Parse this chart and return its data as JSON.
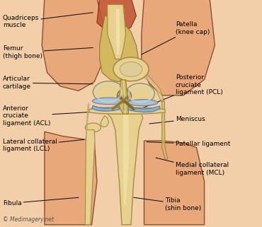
{
  "figsize": [
    3.7,
    3.21
  ],
  "dpi": 100,
  "bg_color": "#f2cfa8",
  "watermark": "© Medimagery.net",
  "skin_color": "#e8a87a",
  "skin_edge": "#8b5030",
  "bone_color": "#e8d090",
  "bone_light": "#f5e8b0",
  "bone_edge": "#a09040",
  "cart_color": "#a8c0d8",
  "cart_edge": "#5878a0",
  "musc_color": "#c05030",
  "tendon_color": "#d4b860",
  "tendon_edge": "#907830",
  "label_fontsize": 6.5,
  "arrow_color": "#222222",
  "left_labels": [
    {
      "text": "Quadriceps\nmuscle",
      "xt": 0.01,
      "yt": 0.905,
      "xa": 0.355,
      "ya": 0.945
    },
    {
      "text": "Femur\n(thigh bone)",
      "xt": 0.01,
      "yt": 0.77,
      "xa": 0.355,
      "ya": 0.79
    },
    {
      "text": "Articular\ncartilage",
      "xt": 0.01,
      "yt": 0.635,
      "xa": 0.355,
      "ya": 0.63
    },
    {
      "text": "Anterior\ncruciate\nligament (ACL)",
      "xt": 0.01,
      "yt": 0.49,
      "xa": 0.4,
      "ya": 0.51
    },
    {
      "text": "Lateral collateral\nligament (LCL)",
      "xt": 0.01,
      "yt": 0.36,
      "xa": 0.32,
      "ya": 0.385
    },
    {
      "text": "Fibula",
      "xt": 0.01,
      "yt": 0.105,
      "xa": 0.3,
      "ya": 0.13
    }
  ],
  "right_labels": [
    {
      "text": "Patella\n(knee cap)",
      "xt": 0.67,
      "yt": 0.875,
      "xa": 0.54,
      "ya": 0.76
    },
    {
      "text": "Posterior\ncruciate\nligament (PCL)",
      "xt": 0.67,
      "yt": 0.625,
      "xa": 0.535,
      "ya": 0.52
    },
    {
      "text": "Meniscus",
      "xt": 0.67,
      "yt": 0.475,
      "xa": 0.57,
      "ya": 0.455
    },
    {
      "text": "Patellar ligament",
      "xt": 0.67,
      "yt": 0.365,
      "xa": 0.56,
      "ya": 0.375
    },
    {
      "text": "Medial collateral\nligament (MCL)",
      "xt": 0.67,
      "yt": 0.255,
      "xa": 0.595,
      "ya": 0.305
    },
    {
      "text": "Tibia\n(shin bone)",
      "xt": 0.63,
      "yt": 0.1,
      "xa": 0.51,
      "ya": 0.13
    }
  ]
}
